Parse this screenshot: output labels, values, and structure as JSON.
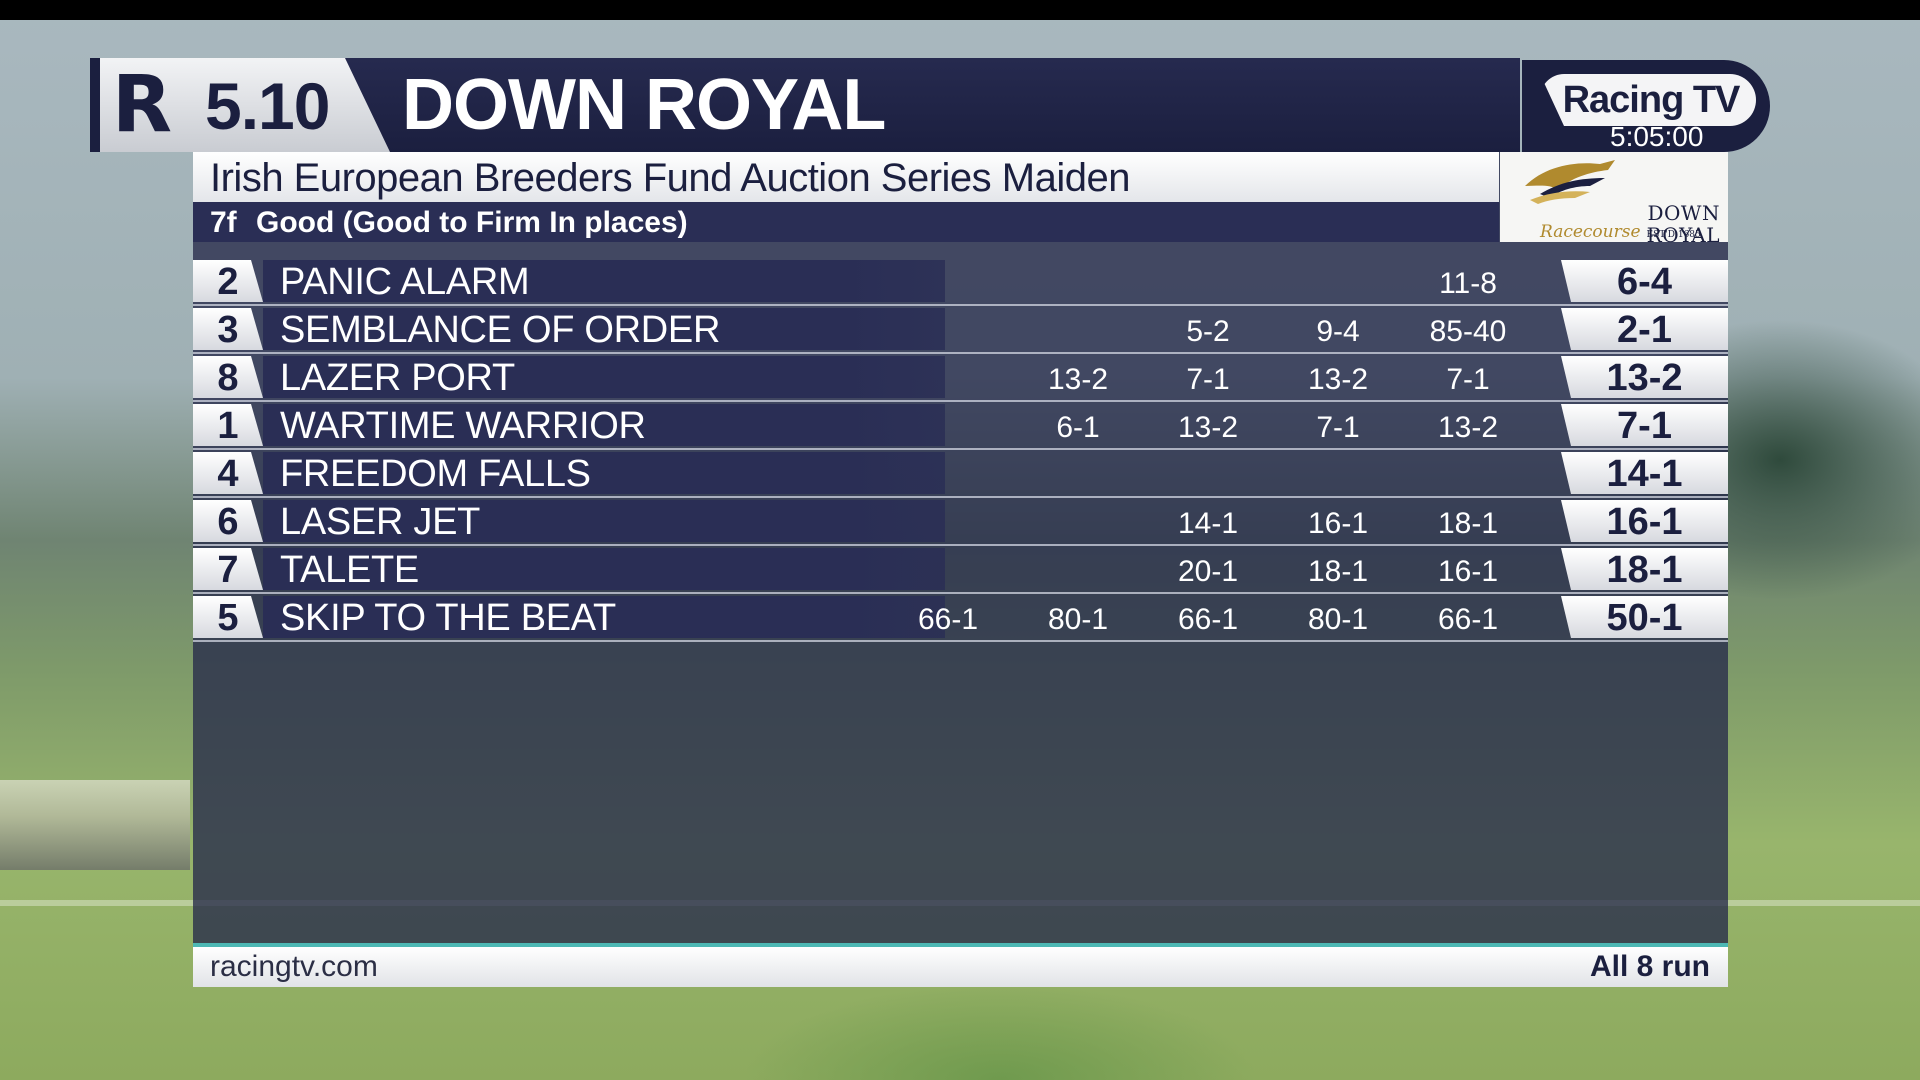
{
  "broadcaster": {
    "name": "Racing TV",
    "clock": "5:05:00"
  },
  "race": {
    "time": "5.10",
    "venue": "DOWN ROYAL",
    "name": "Irish European Breeders Fund Auction Series Maiden",
    "distance": "7f",
    "going": "Good (Good to Firm In places)"
  },
  "course_logo": {
    "name": "DOWN ROYAL",
    "sub": "Racecourse",
    "est": "EST'D 1685"
  },
  "runners": [
    {
      "number": "2",
      "name": "PANIC ALARM",
      "history": [
        "",
        "",
        "",
        "",
        "11-8"
      ],
      "price": "6-4"
    },
    {
      "number": "3",
      "name": "SEMBLANCE OF ORDER",
      "history": [
        "",
        "",
        "5-2",
        "9-4",
        "85-40"
      ],
      "price": "2-1"
    },
    {
      "number": "8",
      "name": "LAZER PORT",
      "history": [
        "",
        "13-2",
        "7-1",
        "13-2",
        "7-1"
      ],
      "price": "13-2"
    },
    {
      "number": "1",
      "name": "WARTIME WARRIOR",
      "history": [
        "",
        "6-1",
        "13-2",
        "7-1",
        "13-2"
      ],
      "price": "7-1"
    },
    {
      "number": "4",
      "name": "FREEDOM FALLS",
      "history": [
        "",
        "",
        "",
        "",
        ""
      ],
      "price": "14-1"
    },
    {
      "number": "6",
      "name": "LASER JET",
      "history": [
        "",
        "",
        "14-1",
        "16-1",
        "18-1"
      ],
      "price": "16-1"
    },
    {
      "number": "7",
      "name": "TALETE",
      "history": [
        "",
        "",
        "20-1",
        "18-1",
        "16-1"
      ],
      "price": "18-1"
    },
    {
      "number": "5",
      "name": "SKIP TO THE BEAT",
      "history": [
        "66-1",
        "80-1",
        "66-1",
        "80-1",
        "66-1"
      ],
      "price": "50-1"
    }
  ],
  "footer": {
    "url": "racingtv.com",
    "runners_note": "All 8 run"
  },
  "colors": {
    "navy": "#1b1f3f",
    "accent_teal": "#4db8b4",
    "gold": "#b08a2e"
  }
}
